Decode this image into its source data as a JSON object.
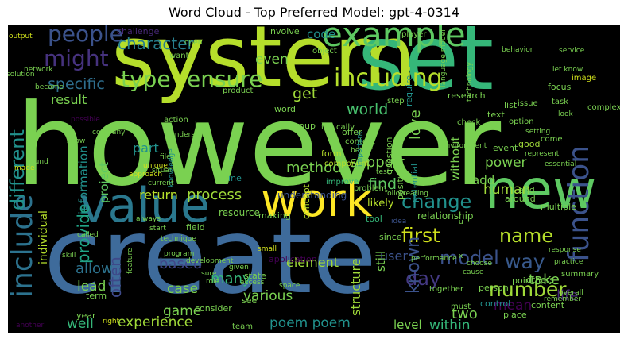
{
  "chart_data": {
    "type": "wordcloud",
    "title": "Word Cloud - Top Preferred Model: gpt-4-0314",
    "background": "#000000",
    "palette": "viridis",
    "words": [
      {
        "text": "however",
        "weight": 100,
        "color": "#7ad151"
      },
      {
        "text": "create",
        "weight": 96,
        "color": "#3e6b9b"
      },
      {
        "text": "system",
        "weight": 78,
        "color": "#b5de2b"
      },
      {
        "text": "set",
        "weight": 74,
        "color": "#35b779"
      },
      {
        "text": "value",
        "weight": 44,
        "color": "#2a788e"
      },
      {
        "text": "work",
        "weight": 42,
        "color": "#fde725"
      },
      {
        "text": "new",
        "weight": 46,
        "color": "#5ec962"
      },
      {
        "text": "example",
        "weight": 30,
        "color": "#5ec962"
      },
      {
        "text": "function",
        "weight": 26,
        "color": "#3b528b"
      },
      {
        "text": "include",
        "weight": 26,
        "color": "#2c728e"
      },
      {
        "text": "including",
        "weight": 22,
        "color": "#b5de2b"
      },
      {
        "text": "ensure",
        "weight": 20,
        "color": "#7ad151"
      },
      {
        "text": "people",
        "weight": 20,
        "color": "#3b528b"
      },
      {
        "text": "might",
        "weight": 20,
        "color": "#46327e"
      },
      {
        "text": "type",
        "weight": 20,
        "color": "#7ad151"
      },
      {
        "text": "different",
        "weight": 18,
        "color": "#21918c"
      },
      {
        "text": "change",
        "weight": 18,
        "color": "#21918c"
      },
      {
        "text": "name",
        "weight": 18,
        "color": "#b5de2b"
      },
      {
        "text": "number",
        "weight": 18,
        "color": "#a0da39"
      },
      {
        "text": "model",
        "weight": 18,
        "color": "#3b528b"
      },
      {
        "text": "first",
        "weight": 18,
        "color": "#d0e11c"
      },
      {
        "text": "way",
        "weight": 18,
        "color": "#38598c"
      },
      {
        "text": "day",
        "weight": 17,
        "color": "#443983"
      },
      {
        "text": "character",
        "weight": 15,
        "color": "#277f8e"
      },
      {
        "text": "specific",
        "weight": 14,
        "color": "#2e6e8e"
      },
      {
        "text": "world",
        "weight": 14,
        "color": "#48c16e"
      },
      {
        "text": "provide",
        "weight": 15,
        "color": "#20a486"
      },
      {
        "text": "known",
        "weight": 15,
        "color": "#3b528b"
      },
      {
        "text": "often",
        "weight": 15,
        "color": "#3e4989"
      },
      {
        "text": "process",
        "weight": 13,
        "color": "#a0da39"
      },
      {
        "text": "method",
        "weight": 13,
        "color": "#7ad151"
      },
      {
        "text": "support",
        "weight": 13,
        "color": "#7ad151"
      },
      {
        "text": "find",
        "weight": 14,
        "color": "#5ec962"
      },
      {
        "text": "love",
        "weight": 13,
        "color": "#7ad151"
      },
      {
        "text": "take",
        "weight": 13,
        "color": "#7ad151"
      },
      {
        "text": "life",
        "weight": 13,
        "color": "#482878"
      },
      {
        "text": "mean",
        "weight": 13,
        "color": "#440154"
      },
      {
        "text": "human",
        "weight": 12,
        "color": "#a0da39"
      },
      {
        "text": "power",
        "weight": 12,
        "color": "#7ad151"
      },
      {
        "text": "based",
        "weight": 13,
        "color": "#404688"
      },
      {
        "text": "allow",
        "weight": 13,
        "color": "#2c728e"
      },
      {
        "text": "many",
        "weight": 13,
        "color": "#35b779"
      },
      {
        "text": "game",
        "weight": 12,
        "color": "#7ad151"
      },
      {
        "text": "case",
        "weight": 12,
        "color": "#7ad151"
      },
      {
        "text": "lead",
        "weight": 12,
        "color": "#7ad151"
      },
      {
        "text": "well",
        "weight": 12,
        "color": "#35b779"
      },
      {
        "text": "experience",
        "weight": 12,
        "color": "#a0da39"
      },
      {
        "text": "poem poem",
        "weight": 12,
        "color": "#21918c"
      },
      {
        "text": "within",
        "weight": 12,
        "color": "#35b779"
      },
      {
        "text": "level",
        "weight": 11,
        "color": "#7ad151"
      },
      {
        "text": "two",
        "weight": 13,
        "color": "#7ad151"
      },
      {
        "text": "various",
        "weight": 12,
        "color": "#7ad151"
      },
      {
        "text": "element",
        "weight": 11,
        "color": "#a0da39"
      },
      {
        "text": "structure",
        "weight": 11,
        "color": "#a0da39"
      },
      {
        "text": "still",
        "weight": 11,
        "color": "#7ad151"
      },
      {
        "text": "user",
        "weight": 11,
        "color": "#3b528b"
      },
      {
        "text": "get",
        "weight": 14,
        "color": "#a0da39"
      },
      {
        "text": "even",
        "weight": 12,
        "color": "#7ad151"
      },
      {
        "text": "code",
        "weight": 11,
        "color": "#21918c"
      },
      {
        "text": "result",
        "weight": 11,
        "color": "#7ad151"
      },
      {
        "text": "part",
        "weight": 12,
        "color": "#21918c"
      },
      {
        "text": "information",
        "weight": 11,
        "color": "#21918c"
      },
      {
        "text": "project",
        "weight": 11,
        "color": "#5ec962"
      },
      {
        "text": "return",
        "weight": 11,
        "color": "#b5de2b"
      },
      {
        "text": "individual",
        "weight": 10,
        "color": "#b5de2b"
      },
      {
        "text": "without",
        "weight": 11,
        "color": "#7ad151"
      },
      {
        "text": "add",
        "weight": 11,
        "color": "#7ad151"
      },
      {
        "text": "resource",
        "weight": 8,
        "color": "#7ad151"
      },
      {
        "text": "understanding",
        "weight": 8,
        "color": "#3b528b"
      },
      {
        "text": "likely",
        "weight": 9,
        "color": "#b5de2b"
      },
      {
        "text": "relationship",
        "weight": 8,
        "color": "#7ad151"
      },
      {
        "text": "form",
        "weight": 7,
        "color": "#b5de2b"
      },
      {
        "text": "concept",
        "weight": 7,
        "color": "#b5de2b"
      },
      {
        "text": "making",
        "weight": 7,
        "color": "#7ad151"
      },
      {
        "text": "tool",
        "weight": 7,
        "color": "#35b779"
      },
      {
        "text": "field",
        "weight": 7,
        "color": "#7ad151"
      },
      {
        "text": "line",
        "weight": 7,
        "color": "#21918c"
      },
      {
        "text": "problem",
        "weight": 6,
        "color": "#7ad151"
      },
      {
        "text": "improve",
        "weight": 6,
        "color": "#35b779"
      },
      {
        "text": "position",
        "weight": 7,
        "color": "#7ad151"
      },
      {
        "text": "potential",
        "weight": 7,
        "color": "#21918c"
      },
      {
        "text": "question",
        "weight": 7,
        "color": "#7ad151"
      },
      {
        "text": "event",
        "weight": 7,
        "color": "#7ad151"
      },
      {
        "text": "good",
        "weight": 7,
        "color": "#a0da39"
      },
      {
        "text": "end",
        "weight": 7,
        "color": "#7ad151"
      },
      {
        "text": "around",
        "weight": 7,
        "color": "#7ad151"
      },
      {
        "text": "multiple",
        "weight": 7,
        "color": "#7ad151"
      },
      {
        "text": "come",
        "weight": 6,
        "color": "#7ad151"
      },
      {
        "text": "text",
        "weight": 7,
        "color": "#7ad151"
      },
      {
        "text": "offer",
        "weight": 7,
        "color": "#7ad151"
      },
      {
        "text": "component",
        "weight": 6,
        "color": "#b5de2b"
      },
      {
        "text": "since",
        "weight": 7,
        "color": "#7ad151"
      },
      {
        "text": "idea",
        "weight": 6,
        "color": "#3b528b"
      },
      {
        "text": "point",
        "weight": 7,
        "color": "#7ad151"
      },
      {
        "text": "others",
        "weight": 7,
        "color": "#7ad151"
      },
      {
        "text": "summary",
        "weight": 6,
        "color": "#7ad151"
      },
      {
        "text": "control",
        "weight": 7,
        "color": "#21918c"
      },
      {
        "text": "place",
        "weight": 7,
        "color": "#7ad151"
      },
      {
        "text": "content",
        "weight": 7,
        "color": "#7ad151"
      },
      {
        "text": "person",
        "weight": 7,
        "color": "#7ad151"
      },
      {
        "text": "together",
        "weight": 6,
        "color": "#7ad151"
      },
      {
        "text": "must",
        "weight": 6,
        "color": "#7ad151"
      },
      {
        "text": "state",
        "weight": 7,
        "color": "#7ad151"
      },
      {
        "text": "consider",
        "weight": 7,
        "color": "#7ad151"
      },
      {
        "text": "see",
        "weight": 7,
        "color": "#7ad151"
      },
      {
        "text": "term",
        "weight": 7,
        "color": "#7ad151"
      },
      {
        "text": "year",
        "weight": 6,
        "color": "#7ad151"
      },
      {
        "text": "team",
        "weight": 6,
        "color": "#7ad151"
      },
      {
        "text": "application",
        "weight": 7,
        "color": "#440154"
      },
      {
        "text": "challenge",
        "weight": 7,
        "color": "#482878"
      },
      {
        "text": "involve",
        "weight": 7,
        "color": "#7ad151"
      },
      {
        "text": "player",
        "weight": 6,
        "color": "#7ad151"
      },
      {
        "text": "research",
        "weight": 7,
        "color": "#7ad151"
      },
      {
        "text": "object",
        "weight": 6,
        "color": "#7ad151"
      },
      {
        "text": "want",
        "weight": 6,
        "color": "#7ad151"
      },
      {
        "text": "word",
        "weight": 6,
        "color": "#7ad151"
      },
      {
        "text": "product",
        "weight": 6,
        "color": "#7ad151"
      },
      {
        "text": "action",
        "weight": 6,
        "color": "#7ad151"
      },
      {
        "text": "key",
        "weight": 6,
        "color": "#7ad151"
      },
      {
        "text": "group",
        "weight": 6,
        "color": "#7ad151"
      },
      {
        "text": "step",
        "weight": 6,
        "color": "#7ad151"
      },
      {
        "text": "require",
        "weight": 6,
        "color": "#21918c"
      },
      {
        "text": "typically",
        "weight": 6,
        "color": "#7ad151"
      },
      {
        "text": "context",
        "weight": 6,
        "color": "#7ad151"
      },
      {
        "text": "better",
        "weight": 6,
        "color": "#7ad151"
      },
      {
        "text": "check",
        "weight": 6,
        "color": "#7ad151"
      },
      {
        "text": "list",
        "weight": 6,
        "color": "#7ad151"
      },
      {
        "text": "option",
        "weight": 6,
        "color": "#7ad151"
      },
      {
        "text": "task",
        "weight": 6,
        "color": "#7ad151"
      },
      {
        "text": "focus",
        "weight": 6,
        "color": "#7ad151"
      },
      {
        "text": "image",
        "weight": 6,
        "color": "#d0e11c"
      },
      {
        "text": "service",
        "weight": 5,
        "color": "#7ad151"
      },
      {
        "text": "behavior",
        "weight": 5,
        "color": "#7ad151"
      },
      {
        "text": "let know",
        "weight": 5,
        "color": "#7ad151"
      },
      {
        "text": "issue",
        "weight": 5,
        "color": "#7ad151"
      },
      {
        "text": "complex",
        "weight": 5,
        "color": "#7ad151"
      },
      {
        "text": "look",
        "weight": 5,
        "color": "#7ad151"
      },
      {
        "text": "technology",
        "weight": 5,
        "color": "#7ad151"
      },
      {
        "text": "language model",
        "weight": 5,
        "color": "#7ad151"
      },
      {
        "text": "output",
        "weight": 5,
        "color": "#d0e11c"
      },
      {
        "text": "solution",
        "weight": 5,
        "color": "#7ad151"
      },
      {
        "text": "network",
        "weight": 5,
        "color": "#7ad151"
      },
      {
        "text": "become",
        "weight": 5,
        "color": "#7ad151"
      },
      {
        "text": "open",
        "weight": 5,
        "color": "#7ad151"
      },
      {
        "text": "possible",
        "weight": 5,
        "color": "#440154"
      },
      {
        "text": "show",
        "weight": 5,
        "color": "#7ad151"
      },
      {
        "text": "company",
        "weight": 5,
        "color": "#7ad151"
      },
      {
        "text": "understand",
        "weight": 5,
        "color": "#7ad151"
      },
      {
        "text": "environment",
        "weight": 5,
        "color": "#7ad151"
      },
      {
        "text": "setting",
        "weight": 5,
        "color": "#7ad151"
      },
      {
        "text": "represent",
        "weight": 5,
        "color": "#7ad151"
      },
      {
        "text": "essential",
        "weight": 5,
        "color": "#7ad151"
      },
      {
        "text": "file",
        "weight": 5,
        "color": "#7ad151"
      },
      {
        "text": "unique",
        "weight": 5,
        "color": "#d0e11c"
      },
      {
        "text": "approach",
        "weight": 5,
        "color": "#d0e11c"
      },
      {
        "text": "situation",
        "weight": 5,
        "color": "#7ad151"
      },
      {
        "text": "knowledge",
        "weight": 5,
        "color": "#21918c"
      },
      {
        "text": "current",
        "weight": 5,
        "color": "#7ad151"
      },
      {
        "text": "important",
        "weight": 5,
        "color": "#21918c"
      },
      {
        "text": "test",
        "weight": 5,
        "color": "#7ad151"
      },
      {
        "text": "found",
        "weight": 5,
        "color": "#7ad151"
      },
      {
        "text": "made",
        "weight": 5,
        "color": "#d0e11c"
      },
      {
        "text": "always",
        "weight": 5,
        "color": "#7ad151"
      },
      {
        "text": "technique",
        "weight": 5,
        "color": "#7ad151"
      },
      {
        "text": "start",
        "weight": 5,
        "color": "#7ad151"
      },
      {
        "text": "program",
        "weight": 5,
        "color": "#7ad151"
      },
      {
        "text": "development",
        "weight": 5,
        "color": "#7ad151"
      },
      {
        "text": "feature",
        "weight": 5,
        "color": "#7ad151"
      },
      {
        "text": "called",
        "weight": 5,
        "color": "#7ad151"
      },
      {
        "text": "skill",
        "weight": 5,
        "color": "#7ad151"
      },
      {
        "text": "small",
        "weight": 5,
        "color": "#d0e11c"
      },
      {
        "text": "given",
        "weight": 5,
        "color": "#7ad151"
      },
      {
        "text": "access",
        "weight": 5,
        "color": "#7ad151"
      },
      {
        "text": "space",
        "weight": 5,
        "color": "#7ad151"
      },
      {
        "text": "sure",
        "weight": 5,
        "color": "#7ad151"
      },
      {
        "text": "role",
        "weight": 5,
        "color": "#7ad151"
      },
      {
        "text": "another",
        "weight": 5,
        "color": "#440154"
      },
      {
        "text": "right",
        "weight": 5,
        "color": "#d0e11c"
      },
      {
        "text": "performance",
        "weight": 5,
        "color": "#7ad151"
      },
      {
        "text": "cause",
        "weight": 5,
        "color": "#7ad151"
      },
      {
        "text": "choose",
        "weight": 5,
        "color": "#7ad151"
      },
      {
        "text": "response",
        "weight": 5,
        "color": "#7ad151"
      },
      {
        "text": "practice",
        "weight": 5,
        "color": "#7ad151"
      },
      {
        "text": "overall",
        "weight": 5,
        "color": "#7ad151"
      },
      {
        "text": "remember",
        "weight": 5,
        "color": "#7ad151"
      },
      {
        "text": "creating",
        "weight": 5,
        "color": "#7ad151"
      },
      {
        "text": "follow",
        "weight": 5,
        "color": "#7ad151"
      },
      {
        "text": "x",
        "weight": 5,
        "color": "#7ad151"
      },
      {
        "text": "u",
        "weight": 5,
        "color": "#7ad151"
      }
    ]
  }
}
